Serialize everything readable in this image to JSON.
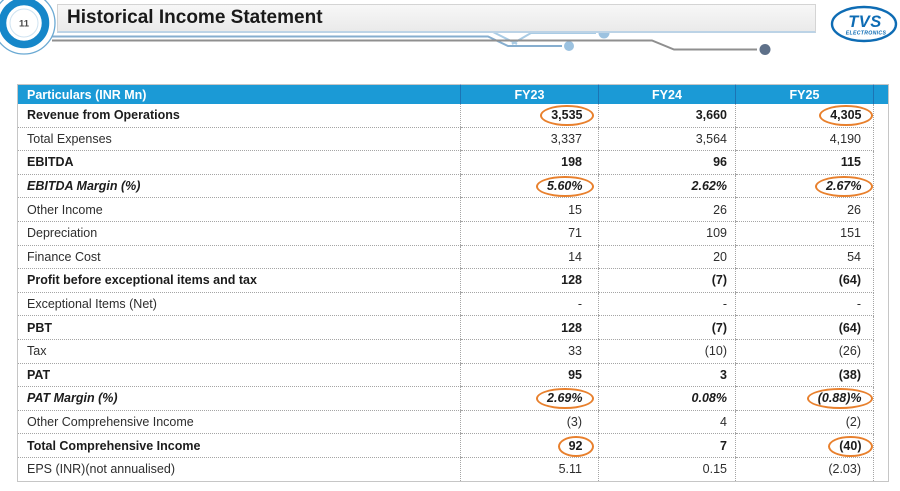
{
  "slide": {
    "number": "11",
    "title": "Historical Income Statement"
  },
  "logo": {
    "brand": "TVS",
    "sub": "ELECTRONICS"
  },
  "colors": {
    "header_blue": "#1b9ad6",
    "highlight_orange": "#e8802d",
    "logo_blue": "#0e6cb4",
    "deco_steel_blue": "#86aecf",
    "deco_light_blue": "#a9cbe4",
    "deco_gray": "#8f8f8f",
    "deco_dark_dot": "#5e7089"
  },
  "table": {
    "columns": [
      "Particulars (INR Mn)",
      "FY23",
      "FY24",
      "FY25"
    ],
    "rows": [
      {
        "label": "Revenue from Operations",
        "style": "bold",
        "values": [
          "3,535",
          "3,660",
          "4,305"
        ],
        "circled": [
          true,
          false,
          true
        ]
      },
      {
        "label": "Total Expenses",
        "style": "regular",
        "values": [
          "3,337",
          "3,564",
          "4,190"
        ],
        "circled": [
          false,
          false,
          false
        ]
      },
      {
        "label": "EBITDA",
        "style": "bold",
        "values": [
          "198",
          "96",
          "115"
        ],
        "circled": [
          false,
          false,
          false
        ]
      },
      {
        "label": "EBITDA Margin (%)",
        "style": "bold-italic",
        "values": [
          "5.60%",
          "2.62%",
          "2.67%"
        ],
        "circled": [
          true,
          false,
          true
        ]
      },
      {
        "label": "Other Income",
        "style": "regular",
        "values": [
          "15",
          "26",
          "26"
        ],
        "circled": [
          false,
          false,
          false
        ]
      },
      {
        "label": "Depreciation",
        "style": "regular",
        "values": [
          "71",
          "109",
          "151"
        ],
        "circled": [
          false,
          false,
          false
        ]
      },
      {
        "label": "Finance Cost",
        "style": "regular",
        "values": [
          "14",
          "20",
          "54"
        ],
        "circled": [
          false,
          false,
          false
        ]
      },
      {
        "label": "Profit before exceptional items and tax",
        "style": "bold",
        "values": [
          "128",
          "(7)",
          "(64)"
        ],
        "circled": [
          false,
          false,
          false
        ]
      },
      {
        "label": "Exceptional Items (Net)",
        "style": "regular",
        "values": [
          "-",
          "-",
          "-"
        ],
        "circled": [
          false,
          false,
          false
        ]
      },
      {
        "label": "PBT",
        "style": "bold",
        "values": [
          "128",
          "(7)",
          "(64)"
        ],
        "circled": [
          false,
          false,
          false
        ]
      },
      {
        "label": "Tax",
        "style": "regular",
        "values": [
          "33",
          "(10)",
          "(26)"
        ],
        "circled": [
          false,
          false,
          false
        ]
      },
      {
        "label": "PAT",
        "style": "bold",
        "values": [
          "95",
          "3",
          "(38)"
        ],
        "circled": [
          false,
          false,
          false
        ]
      },
      {
        "label": "PAT Margin (%)",
        "style": "bold-italic",
        "values": [
          "2.69%",
          "0.08%",
          "(0.88)%"
        ],
        "circled": [
          true,
          false,
          true
        ]
      },
      {
        "label": "Other Comprehensive Income",
        "style": "regular",
        "values": [
          "(3)",
          "4",
          "(2)"
        ],
        "circled": [
          false,
          false,
          false
        ]
      },
      {
        "label": "Total Comprehensive Income",
        "style": "bold",
        "values": [
          "92",
          "7",
          "(40)"
        ],
        "circled": [
          true,
          false,
          true
        ]
      },
      {
        "label": "EPS (INR)(not annualised)",
        "style": "regular",
        "values": [
          "5.11",
          "0.15",
          "(2.03)"
        ],
        "circled": [
          false,
          false,
          false
        ]
      }
    ]
  }
}
